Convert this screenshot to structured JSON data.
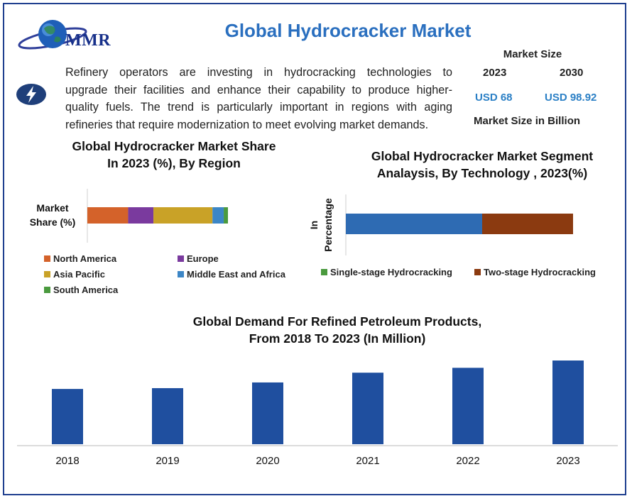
{
  "header": {
    "title": "Global Hydrocracker Market",
    "logo_text": "MMR"
  },
  "description": {
    "lines": [
      "Refinery operators are investing in hydrocracking technologies to",
      "upgrade their facilities and enhance their capability to produce higher-",
      "quality fuels. The trend is particularly important in regions with aging",
      "refineries that require modernization to meet evolving market demands."
    ]
  },
  "market_size": {
    "heading": "Market Size",
    "year_a": "2023",
    "year_b": "2030",
    "value_a": "USD 68",
    "value_b": "USD 98.92",
    "footer": "Market Size in Billion"
  },
  "colors": {
    "accent": "#2a6fbf",
    "north_america": "#d4622a",
    "europe": "#7a3a9e",
    "asia_pacific": "#c9a227",
    "middle_east_africa": "#3c86c6",
    "south_america": "#4a9a3e",
    "single_stage": "#2e6bb3",
    "two_stage": "#8b3a10",
    "demand_bar": "#1f4f9f"
  },
  "chart_data": [
    {
      "type": "bar",
      "orientation": "horizontal-stacked",
      "title": "Global Hydrocracker Market Share",
      "subtitle": "In 2023 (%), By Region",
      "ylabel": "Market Share (%)",
      "series": [
        {
          "name": "North America",
          "values": [
            29
          ]
        },
        {
          "name": "Europe",
          "values": [
            18
          ]
        },
        {
          "name": "Asia Pacific",
          "values": [
            42
          ]
        },
        {
          "name": "Middle East and Africa",
          "values": [
            8
          ]
        },
        {
          "name": "South America",
          "values": [
            3
          ]
        }
      ],
      "legend": [
        "North America",
        "Europe",
        "Asia Pacific",
        "Middle East and Africa",
        "South America"
      ]
    },
    {
      "type": "bar",
      "orientation": "horizontal-stacked",
      "title": "Global Hydrocracker Market Segment",
      "subtitle": "Analaysis, By Technology , 2023(%)",
      "ylabel": "In Percentage",
      "series": [
        {
          "name": "Single-stage Hydrocracking",
          "values": [
            60
          ]
        },
        {
          "name": "Two-stage Hydrocracking",
          "values": [
            40
          ]
        }
      ],
      "legend": [
        "Single-stage Hydrocracking",
        "Two-stage Hydrocracking"
      ]
    },
    {
      "type": "bar",
      "title": "Global Demand For Refined Petroleum Products,",
      "subtitle": "From 2018 To 2023 (In Million)",
      "categories": [
        "2018",
        "2019",
        "2020",
        "2021",
        "2022",
        "2023"
      ],
      "values": [
        68,
        69,
        76,
        88,
        94,
        103
      ],
      "ylim": [
        0,
        110
      ]
    }
  ]
}
